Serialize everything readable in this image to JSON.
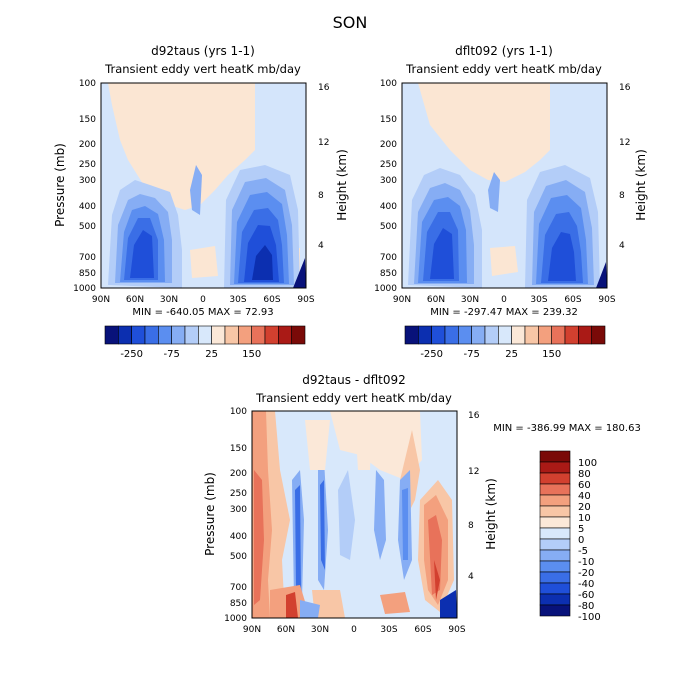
{
  "figure_title": "SON",
  "panels": [
    {
      "title": "d92taus (yrs 1-1)",
      "subtitle": "Transient eddy vert heatK mb/day",
      "ylabel": "Pressure (mb)",
      "ylabel2": "Height (km)",
      "stats": "MIN = -640.05   MAX = 72.93"
    },
    {
      "title": "dflt092 (yrs 1-1)",
      "subtitle": "Transient eddy vert heatK mb/day",
      "ylabel": "Pressure (mb)",
      "ylabel2": "Height (km)",
      "stats": "MIN = -297.47   MAX = 239.32"
    },
    {
      "title": "d92taus - dflt092",
      "subtitle": "Transient eddy vert heatK mb/day",
      "ylabel": "Pressure (mb)",
      "ylabel2": "Height (km)",
      "stats": "MIN = -386.99   MAX = 180.63"
    }
  ],
  "chart_data": [
    {
      "type": "heatmap",
      "title": "d92taus (yrs 1-1)",
      "subtitle": "Transient eddy vert heatK mb/day",
      "xlabel": "",
      "ylabel": "Pressure (mb)",
      "ylabel_right": "Height (km)",
      "x_ticks": [
        "90N",
        "60N",
        "30N",
        "0",
        "30S",
        "60S",
        "90S"
      ],
      "y_ticks": [
        100,
        150,
        200,
        250,
        300,
        400,
        500,
        700,
        850,
        1000
      ],
      "y_scale": "log",
      "y_right_ticks": [
        16,
        12,
        8,
        4
      ],
      "min": -640.05,
      "max": 72.93,
      "colorbar": {
        "orientation": "horizontal",
        "labels": [
          "-250",
          "-75",
          "25",
          "150"
        ],
        "colors": [
          "#08127a",
          "#0c2fb0",
          "#1f4fd9",
          "#3a6ee6",
          "#5b8ef0",
          "#86adf4",
          "#b3cdf8",
          "#d8e8fb",
          "#fbe8d8",
          "#f8c6a6",
          "#f3a07e",
          "#e8725a",
          "#d2402f",
          "#aa1a16",
          "#7a0a08"
        ]
      }
    },
    {
      "type": "heatmap",
      "title": "dflt092 (yrs 1-1)",
      "subtitle": "Transient eddy vert heatK mb/day",
      "xlabel": "",
      "ylabel": "Pressure (mb)",
      "ylabel_right": "Height (km)",
      "x_ticks": [
        "90N",
        "60N",
        "30N",
        "0",
        "30S",
        "60S",
        "90S"
      ],
      "y_ticks": [
        100,
        150,
        200,
        250,
        300,
        400,
        500,
        700,
        850,
        1000
      ],
      "y_scale": "log",
      "y_right_ticks": [
        16,
        12,
        8,
        4
      ],
      "min": -297.47,
      "max": 239.32,
      "colorbar": {
        "orientation": "horizontal",
        "labels": [
          "-250",
          "-75",
          "25",
          "150"
        ],
        "colors": [
          "#08127a",
          "#0c2fb0",
          "#1f4fd9",
          "#3a6ee6",
          "#5b8ef0",
          "#86adf4",
          "#b3cdf8",
          "#d8e8fb",
          "#fbe8d8",
          "#f8c6a6",
          "#f3a07e",
          "#e8725a",
          "#d2402f",
          "#aa1a16",
          "#7a0a08"
        ]
      }
    },
    {
      "type": "heatmap",
      "title": "d92taus - dflt092",
      "subtitle": "Transient eddy vert heatK mb/day",
      "xlabel": "",
      "ylabel": "Pressure (mb)",
      "ylabel_right": "Height (km)",
      "x_ticks": [
        "90N",
        "60N",
        "30N",
        "0",
        "30S",
        "60S",
        "90S"
      ],
      "y_ticks": [
        100,
        150,
        200,
        250,
        300,
        400,
        500,
        700,
        850,
        1000
      ],
      "y_scale": "log",
      "y_right_ticks": [
        16,
        12,
        8,
        4
      ],
      "min": -386.99,
      "max": 180.63,
      "colorbar": {
        "orientation": "vertical",
        "labels": [
          "100",
          "80",
          "60",
          "40",
          "20",
          "10",
          "5",
          "0",
          "-5",
          "-10",
          "-20",
          "-40",
          "-60",
          "-80",
          "-100"
        ],
        "colors": [
          "#7a0a08",
          "#aa1a16",
          "#d2402f",
          "#e8725a",
          "#f3a07e",
          "#f8c6a6",
          "#fbe8d8",
          "#d8e8fb",
          "#b3cdf8",
          "#86adf4",
          "#5b8ef0",
          "#3a6ee6",
          "#1f4fd9",
          "#0c2fb0",
          "#08127a"
        ]
      }
    }
  ]
}
